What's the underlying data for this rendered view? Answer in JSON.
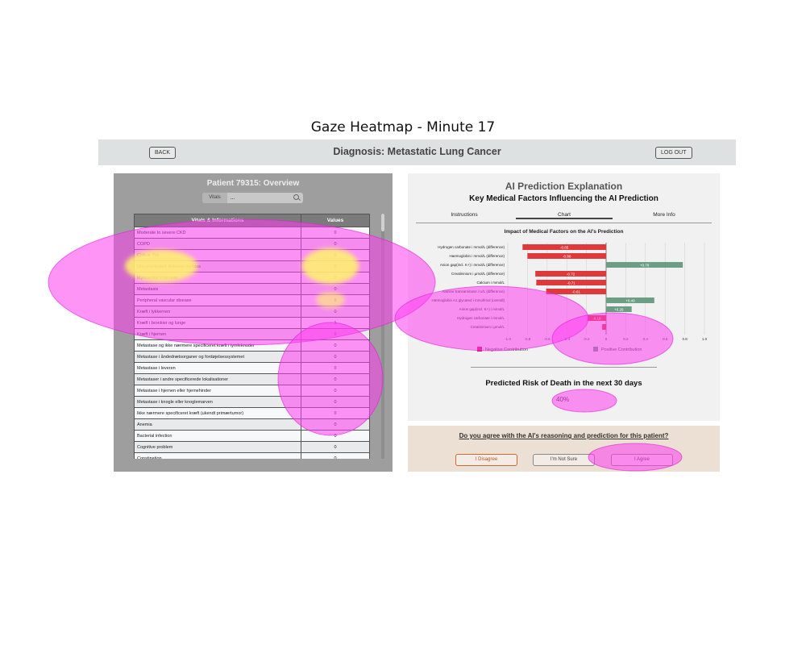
{
  "figure_title": "Gaze Heatmap - Minute 17",
  "header": {
    "back_label": "BACK",
    "title": "Diagnosis: Metastatic Lung Cancer",
    "logout_label": "LOG OUT"
  },
  "left_panel": {
    "title": "Patient 79315: Overview",
    "search": {
      "tag": "Vitals",
      "value": "..."
    },
    "columns": [
      "Vitals & Informations",
      "Values"
    ],
    "rows": [
      [
        "Moderate to severe CKD",
        "0"
      ],
      [
        "COPD",
        "0"
      ],
      [
        "CVA or TIA",
        "0"
      ],
      [
        "Uncomplicated diabetes mellitus",
        "0"
      ],
      [
        "Myocardial infarction",
        "0"
      ],
      [
        "Metastasis",
        "0"
      ],
      [
        "Peripheral vascular disease",
        "0"
      ],
      [
        "Kræft i lykkernen",
        "0"
      ],
      [
        "Kræft i bronkier og lunge",
        "1"
      ],
      [
        "Kræft i hjernen",
        "0"
      ],
      [
        "Metastase og ikke nærmere specificeret kræft i lymfeknuder",
        "0"
      ],
      [
        "Metastase i åndedrætsorganer og fordøjelsessystemet",
        "0"
      ],
      [
        "Metastase i leveren",
        "0"
      ],
      [
        "Metastaser i andre specificerede lokalisationer",
        "0"
      ],
      [
        "Metastase i hjernen eller hjernehinder",
        "0"
      ],
      [
        "Metastase i knogle eller knoglemarven",
        "0"
      ],
      [
        "Ikke nærmere specificeret kræft (ukendt primærtumor)",
        "0"
      ],
      [
        "Anemia",
        "0"
      ],
      [
        "Bacterial infection",
        "0"
      ],
      [
        "Cognitive problem",
        "0"
      ],
      [
        "Constipation",
        "0"
      ]
    ]
  },
  "right_panel": {
    "title": "AI Prediction Explanation",
    "subtitle": "Key Medical Factors Influencing the AI Prediction",
    "tabs": [
      "Instructions",
      "Chart",
      "More Info"
    ],
    "active_tab": "Chart",
    "risk_title": "Predicted Risk of Death in the next 30 days",
    "risk_value": "40%"
  },
  "chart_data": {
    "type": "bar",
    "orientation": "horizontal",
    "title": "Impact of Medical Factors on the AI's Prediction",
    "categories": [
      "Hydrogen carbonate i mmol/L (difference)",
      "Haemoglobin i mmol/L (difference)",
      "Anion gap(incl. K+) i mmol/L (difference)",
      "Creatininium i µmol/L (difference)",
      "Calcium i mmol/L",
      "Alanine transaminase i U/L (difference)",
      "Hæmoglobin A1 glycated i mmol/mol (overall)",
      "Anion gap(incl. K+) i mmol/L",
      "Hydrogen carbonate i mmol/L",
      "Creatininium i µmol/L"
    ],
    "values": [
      -0.85,
      -0.8,
      0.78,
      -0.72,
      -0.71,
      -0.61,
      0.49,
      0.26,
      -0.19,
      -0.04
    ],
    "value_labels": [
      "-0.85",
      "-0.80",
      "+0.78",
      "-0.72",
      "-0.71",
      "-0.61",
      "+0.49",
      "+0.26",
      "-0.19",
      ""
    ],
    "xlim": [
      -1.0,
      1.0
    ],
    "xticks": [
      "-1.0",
      "-0.8",
      "-0.6",
      "-0.4",
      "-0.2",
      "0",
      "0.2",
      "0.4",
      "0.6",
      "0.8",
      "1.0"
    ],
    "legend": [
      "Negative Contribution",
      "Positive Contribution"
    ],
    "colors": {
      "negative": "#e0393b",
      "positive": "#6c9e86"
    },
    "grid": true
  },
  "agree_panel": {
    "question": "Do you agree with the AI's reasoning and prediction for this patient?",
    "disagree_label": "I Disagree",
    "unsure_label": "I'm Not Sure",
    "agree_label": "I Agree"
  },
  "colors": {
    "heat_outer": "#ff3cf0",
    "heat_core": "#fff46a",
    "disagree_border": "#d06a2c"
  }
}
